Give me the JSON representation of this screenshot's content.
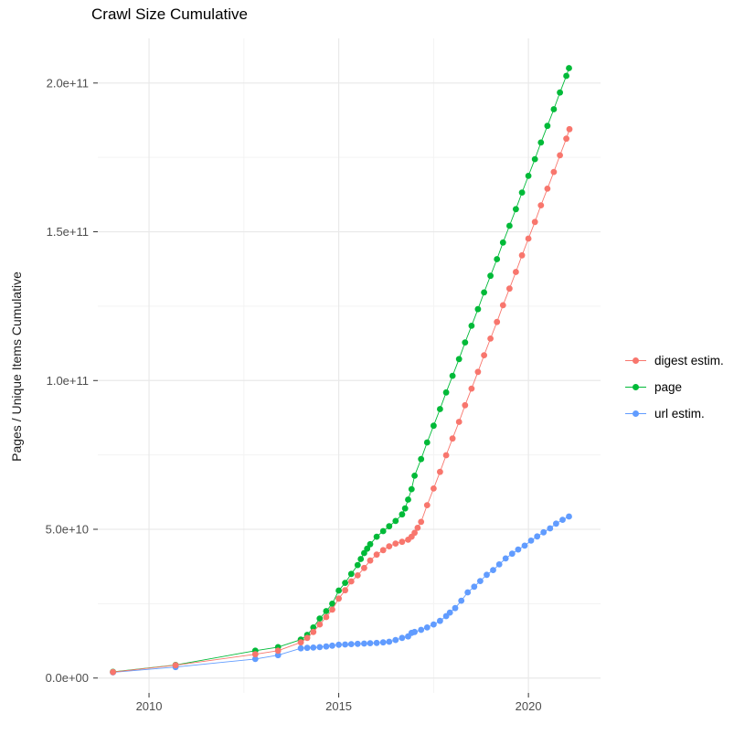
{
  "chart_data": {
    "type": "scatter-line",
    "title": "Crawl Size Cumulative",
    "xlabel": "",
    "ylabel": "Pages / Unique Items Cumulative",
    "legend_position": "right",
    "grid": "major+minor",
    "background": "#FFFFFF",
    "gridline_color": "#E9E9E9",
    "minor_gridline_color": "#F3F3F3",
    "tick_label_color": "#4D4D4D",
    "tick_mark_color": "#333333",
    "value_unit": "1e9",
    "x_axis": {
      "range": [
        2008.65,
        2021.9
      ],
      "major_ticks": [
        {
          "v": 2010,
          "label": "2010"
        },
        {
          "v": 2015,
          "label": "2015"
        },
        {
          "v": 2020,
          "label": "2020"
        }
      ],
      "minor_ticks": [
        2012.5,
        2017.5
      ]
    },
    "y_axis": {
      "range_e9": [
        -5,
        215
      ],
      "major_ticks": [
        {
          "v": 0,
          "label": "0.0e+00"
        },
        {
          "v": 50,
          "label": "5.0e+10"
        },
        {
          "v": 100,
          "label": "1.0e+11"
        },
        {
          "v": 150,
          "label": "1.5e+11"
        },
        {
          "v": 200,
          "label": "2.0e+11"
        }
      ],
      "minor_ticks": [
        25,
        75,
        125,
        175
      ]
    },
    "series": [
      {
        "name": "digest estim.",
        "color": "#F8766D",
        "points": [
          [
            2009.05,
            2.0
          ],
          [
            2010.7,
            4.3
          ],
          [
            2012.8,
            8.0
          ],
          [
            2013.4,
            9.2
          ],
          [
            2014.0,
            12.0
          ],
          [
            2014.17,
            13.5
          ],
          [
            2014.33,
            15.5
          ],
          [
            2014.5,
            18.0
          ],
          [
            2014.67,
            20.5
          ],
          [
            2014.83,
            23.0
          ],
          [
            2015.0,
            26.7
          ],
          [
            2015.17,
            29.5
          ],
          [
            2015.33,
            32.5
          ],
          [
            2015.5,
            34.5
          ],
          [
            2015.67,
            37.0
          ],
          [
            2015.83,
            39.5
          ],
          [
            2016.0,
            41.5
          ],
          [
            2016.17,
            43.0
          ],
          [
            2016.33,
            44.3
          ],
          [
            2016.5,
            45.2
          ],
          [
            2016.67,
            45.8
          ],
          [
            2016.83,
            46.5
          ],
          [
            2016.92,
            47.5
          ],
          [
            2017.0,
            48.8
          ],
          [
            2017.08,
            50.5
          ],
          [
            2017.17,
            52.5
          ],
          [
            2017.33,
            58.1
          ],
          [
            2017.5,
            63.7
          ],
          [
            2017.67,
            69.3
          ],
          [
            2017.83,
            74.9
          ],
          [
            2018.0,
            80.5
          ],
          [
            2018.17,
            86.1
          ],
          [
            2018.33,
            91.7
          ],
          [
            2018.5,
            97.3
          ],
          [
            2018.67,
            102.9
          ],
          [
            2018.83,
            108.5
          ],
          [
            2019.0,
            114.1
          ],
          [
            2019.17,
            119.7
          ],
          [
            2019.33,
            125.3
          ],
          [
            2019.5,
            130.9
          ],
          [
            2019.67,
            136.5
          ],
          [
            2019.83,
            142.1
          ],
          [
            2020.0,
            147.7
          ],
          [
            2020.17,
            153.3
          ],
          [
            2020.33,
            158.9
          ],
          [
            2020.5,
            164.5
          ],
          [
            2020.67,
            170.1
          ],
          [
            2020.83,
            175.7
          ],
          [
            2021.0,
            181.3
          ],
          [
            2021.08,
            184.5
          ]
        ]
      },
      {
        "name": "page",
        "color": "#00BA38",
        "points": [
          [
            2009.05,
            2.1
          ],
          [
            2010.7,
            4.4
          ],
          [
            2012.8,
            9.2
          ],
          [
            2013.4,
            10.4
          ],
          [
            2014.0,
            12.9
          ],
          [
            2014.17,
            14.5
          ],
          [
            2014.33,
            17.0
          ],
          [
            2014.5,
            20.0
          ],
          [
            2014.67,
            22.5
          ],
          [
            2014.83,
            25.0
          ],
          [
            2015.0,
            29.4
          ],
          [
            2015.17,
            32.0
          ],
          [
            2015.33,
            35.0
          ],
          [
            2015.5,
            38.0
          ],
          [
            2015.58,
            40.0
          ],
          [
            2015.67,
            42.0
          ],
          [
            2015.75,
            43.5
          ],
          [
            2015.83,
            45.0
          ],
          [
            2016.0,
            47.5
          ],
          [
            2016.17,
            49.4
          ],
          [
            2016.33,
            51.0
          ],
          [
            2016.5,
            52.8
          ],
          [
            2016.67,
            55.0
          ],
          [
            2016.75,
            57.0
          ],
          [
            2016.83,
            60.0
          ],
          [
            2016.92,
            63.5
          ],
          [
            2017.0,
            68.0
          ],
          [
            2017.17,
            73.6
          ],
          [
            2017.33,
            79.2
          ],
          [
            2017.5,
            84.8
          ],
          [
            2017.67,
            90.4
          ],
          [
            2017.83,
            96.0
          ],
          [
            2018.0,
            101.6
          ],
          [
            2018.17,
            107.2
          ],
          [
            2018.33,
            112.8
          ],
          [
            2018.5,
            118.4
          ],
          [
            2018.67,
            124.0
          ],
          [
            2018.83,
            129.6
          ],
          [
            2019.0,
            135.2
          ],
          [
            2019.17,
            140.8
          ],
          [
            2019.33,
            146.4
          ],
          [
            2019.5,
            152.0
          ],
          [
            2019.67,
            157.6
          ],
          [
            2019.83,
            163.2
          ],
          [
            2020.0,
            168.8
          ],
          [
            2020.17,
            174.4
          ],
          [
            2020.33,
            180.0
          ],
          [
            2020.5,
            185.6
          ],
          [
            2020.67,
            191.2
          ],
          [
            2020.83,
            196.8
          ],
          [
            2021.0,
            202.4
          ],
          [
            2021.07,
            205.0
          ]
        ]
      },
      {
        "name": "url estim.",
        "color": "#619CFF",
        "points": [
          [
            2009.05,
            1.9
          ],
          [
            2010.7,
            3.7
          ],
          [
            2012.8,
            6.4
          ],
          [
            2013.4,
            7.7
          ],
          [
            2014.0,
            10.0
          ],
          [
            2014.17,
            10.15
          ],
          [
            2014.33,
            10.25
          ],
          [
            2014.5,
            10.4
          ],
          [
            2014.67,
            10.6
          ],
          [
            2014.83,
            10.9
          ],
          [
            2015.0,
            11.2
          ],
          [
            2015.17,
            11.3
          ],
          [
            2015.33,
            11.4
          ],
          [
            2015.5,
            11.5
          ],
          [
            2015.67,
            11.6
          ],
          [
            2015.83,
            11.7
          ],
          [
            2016.0,
            11.8
          ],
          [
            2016.17,
            12.0
          ],
          [
            2016.33,
            12.2
          ],
          [
            2016.5,
            12.8
          ],
          [
            2016.67,
            13.5
          ],
          [
            2016.83,
            14.0
          ],
          [
            2016.92,
            15.2
          ],
          [
            2017.0,
            15.5
          ],
          [
            2017.17,
            16.2
          ],
          [
            2017.33,
            17.0
          ],
          [
            2017.5,
            18.0
          ],
          [
            2017.67,
            19.2
          ],
          [
            2017.83,
            20.8
          ],
          [
            2017.93,
            22.0
          ],
          [
            2018.07,
            23.5
          ],
          [
            2018.23,
            26.0
          ],
          [
            2018.4,
            28.8
          ],
          [
            2018.57,
            30.7
          ],
          [
            2018.73,
            32.6
          ],
          [
            2018.9,
            34.7
          ],
          [
            2019.07,
            36.3
          ],
          [
            2019.23,
            38.2
          ],
          [
            2019.4,
            40.2
          ],
          [
            2019.57,
            41.8
          ],
          [
            2019.73,
            43.2
          ],
          [
            2019.9,
            44.5
          ],
          [
            2020.07,
            46.2
          ],
          [
            2020.23,
            47.6
          ],
          [
            2020.4,
            49.0
          ],
          [
            2020.57,
            50.3
          ],
          [
            2020.73,
            51.9
          ],
          [
            2020.9,
            53.2
          ],
          [
            2021.07,
            54.3
          ]
        ]
      }
    ]
  }
}
